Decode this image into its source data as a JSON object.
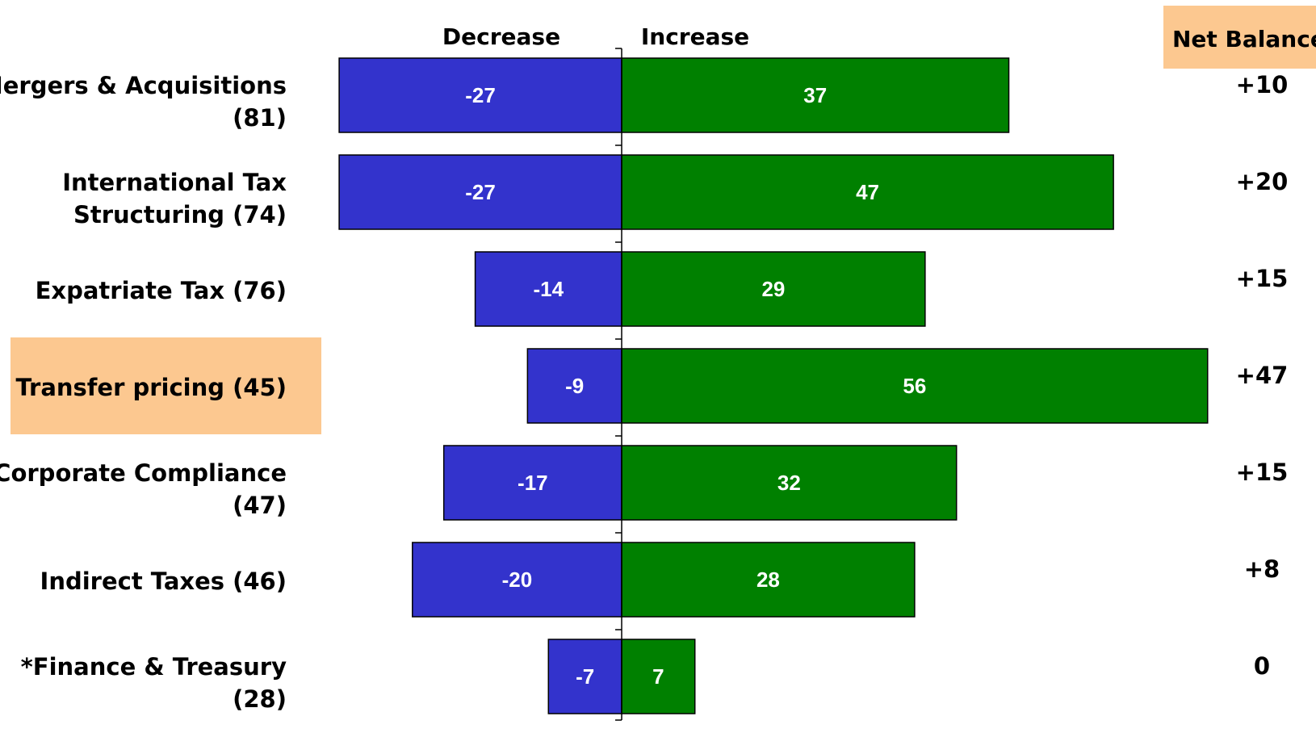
{
  "chart_data": {
    "type": "bar",
    "orientation": "horizontal-diverging",
    "header": {
      "decrease": "Decrease",
      "increase": "Increase",
      "net": "Net Balance"
    },
    "categories": [
      [
        "Mergers & Acquisitions",
        "(81)"
      ],
      [
        "International Tax",
        "Structuring (74)"
      ],
      [
        "Expatriate Tax (76)"
      ],
      [
        "Transfer pricing (45)"
      ],
      [
        "Corporate Compliance",
        "(47)"
      ],
      [
        "Indirect Taxes (46)"
      ],
      [
        "*Finance & Treasury",
        "(28)"
      ]
    ],
    "highlighted_index": 3,
    "series": [
      {
        "name": "Decrease",
        "values": [
          -27,
          -27,
          -14,
          -9,
          -17,
          -20,
          -7
        ],
        "labels": [
          "-27",
          "-27",
          "-14",
          "-9",
          "-17",
          "-20",
          "-7"
        ]
      },
      {
        "name": "Increase",
        "values": [
          37,
          47,
          29,
          56,
          32,
          28,
          7
        ],
        "labels": [
          "37",
          "47",
          "29",
          "56",
          "32",
          "28",
          "7"
        ]
      }
    ],
    "net_balance": [
      "+10",
      "+20",
      "+15",
      "+47",
      "+15",
      "+8",
      "0"
    ],
    "colors": {
      "decrease": "#3333cc",
      "increase": "#008000",
      "highlight": "#fcc890",
      "bar_text": "#ffffff",
      "text": "#000000"
    }
  }
}
